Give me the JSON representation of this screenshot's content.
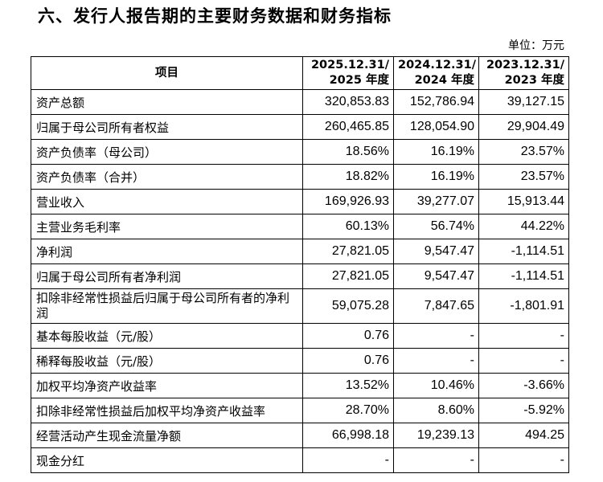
{
  "heading": "六、发行人报告期的主要财务数据和财务指标",
  "unit": "单位：万元",
  "table": {
    "header": {
      "item": "项目",
      "cols": [
        {
          "line1": "2025.12.31/",
          "line2": "2025 年度"
        },
        {
          "line1": "2024.12.31/",
          "line2": "2024 年度"
        },
        {
          "line1": "2023.12.31/",
          "line2": "2023 年度"
        }
      ]
    },
    "rows": [
      {
        "label": "资产总额",
        "v": [
          "320,853.83",
          "152,786.94",
          "39,127.15"
        ]
      },
      {
        "label": "归属于母公司所有者权益",
        "v": [
          "260,465.85",
          "128,054.90",
          "29,904.49"
        ]
      },
      {
        "label": "资产负债率（母公司）",
        "v": [
          "18.56%",
          "16.19%",
          "23.57%"
        ]
      },
      {
        "label": "资产负债率（合并）",
        "v": [
          "18.82%",
          "16.19%",
          "23.57%"
        ]
      },
      {
        "label": "营业收入",
        "v": [
          "169,926.93",
          "39,277.07",
          "15,913.44"
        ]
      },
      {
        "label": "主营业务毛利率",
        "v": [
          "60.13%",
          "56.74%",
          "44.22%"
        ]
      },
      {
        "label": "净利润",
        "v": [
          "27,821.05",
          "9,547.47",
          "-1,114.51"
        ]
      },
      {
        "label": "归属于母公司所有者净利润",
        "v": [
          "27,821.05",
          "9,547.47",
          "-1,114.51"
        ]
      },
      {
        "label": "扣除非经常性损益后归属于母公司所有者的净利润",
        "v": [
          "59,075.28",
          "7,847.65",
          "-1,801.91"
        ]
      },
      {
        "label": "基本每股收益（元/股）",
        "v": [
          "0.76",
          "-",
          "-"
        ]
      },
      {
        "label": "稀释每股收益（元/股）",
        "v": [
          "0.76",
          "-",
          "-"
        ]
      },
      {
        "label": "加权平均净资产收益率",
        "v": [
          "13.52%",
          "10.46%",
          "-3.66%"
        ]
      },
      {
        "label": "扣除非经常性损益后加权平均净资产收益率",
        "v": [
          "28.70%",
          "8.60%",
          "-5.92%"
        ]
      },
      {
        "label": "经营活动产生现金流量净额",
        "v": [
          "66,998.18",
          "19,239.13",
          "494.25"
        ]
      },
      {
        "label": "现金分红",
        "v": [
          "-",
          "-",
          "-"
        ]
      }
    ]
  }
}
